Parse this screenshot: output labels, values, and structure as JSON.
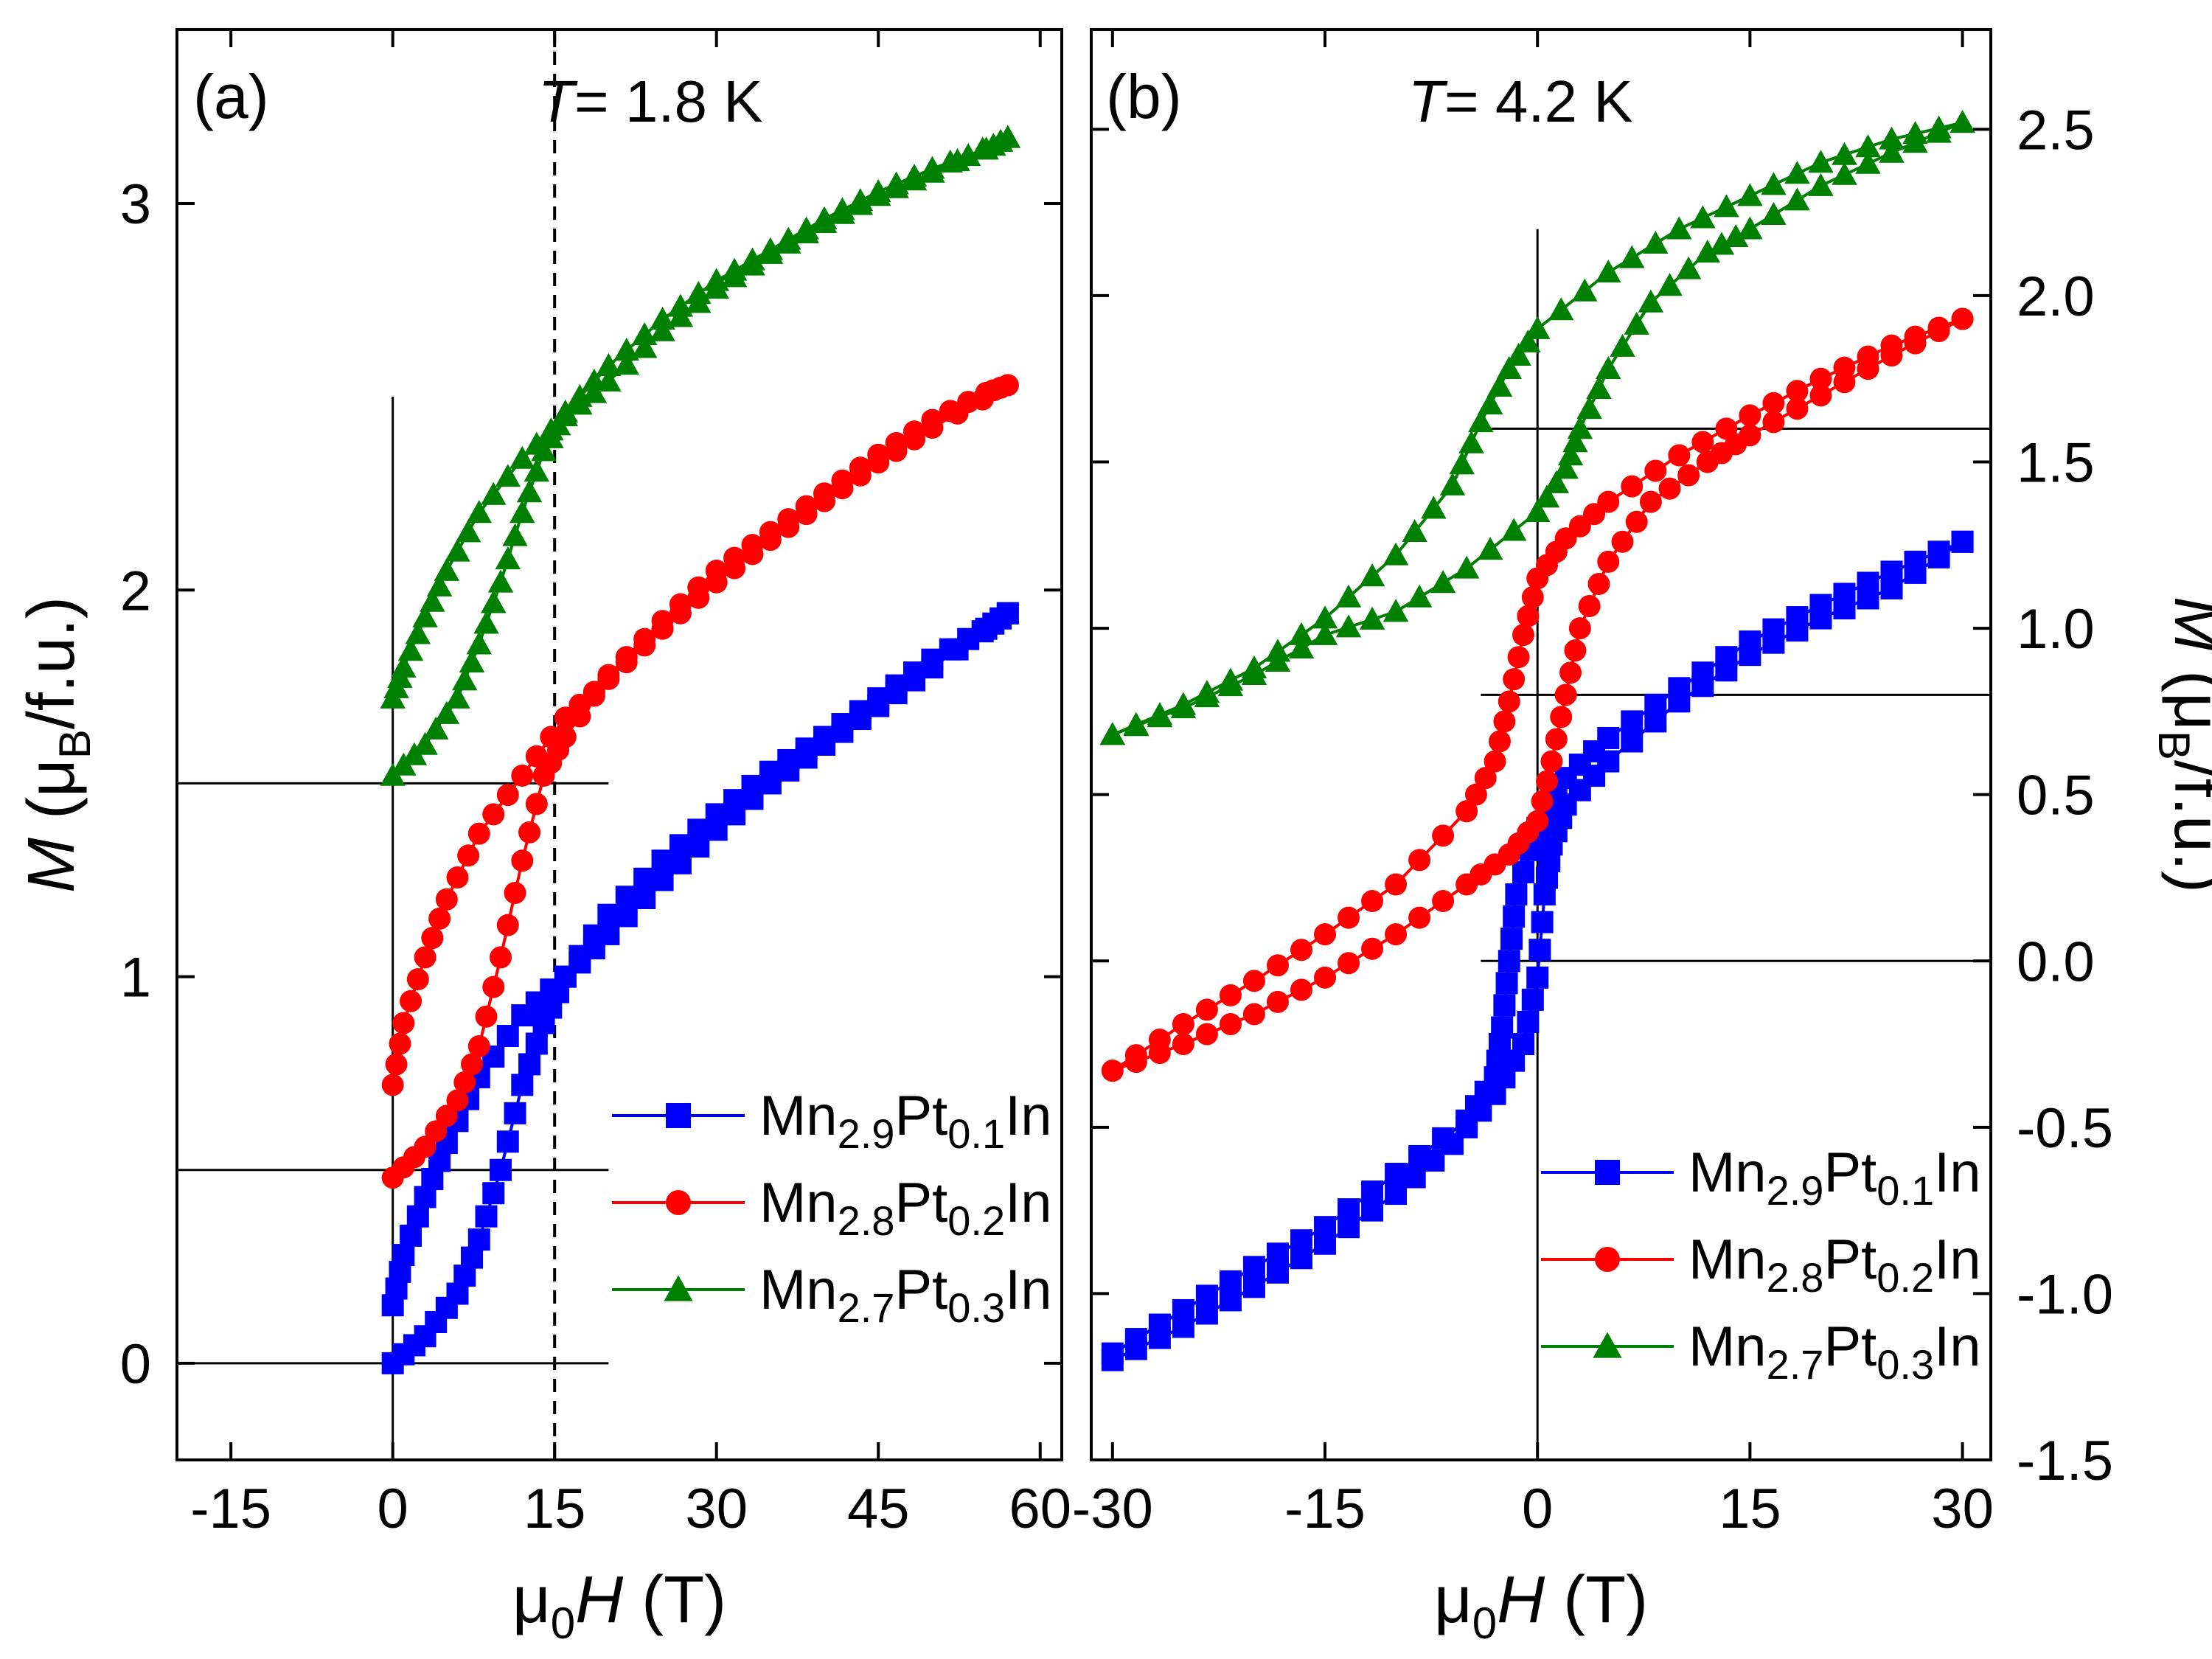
{
  "chart_data": [
    {
      "type": "scatter",
      "panel_label": "(a)",
      "temperature_label": {
        "T": "T",
        "rest": "= 1.8 K"
      },
      "xlabel": {
        "prefix": "μ",
        "sub": "0",
        "italic": "H",
        "suffix": " (T)"
      },
      "ylabel": {
        "italic": "M",
        "open": " (μ",
        "sub": "B",
        "rest": "/f.u.)"
      },
      "xlim": [
        -20,
        62
      ],
      "ylim": [
        -0.25,
        3.45
      ],
      "xticks": [
        -15,
        0,
        15,
        30,
        45,
        60
      ],
      "xtick_labels": [
        "-15",
        "0",
        "15",
        "30",
        "45",
        "60"
      ],
      "yticks": [
        0,
        1,
        2,
        3
      ],
      "ytick_labels": [
        "0",
        "1",
        "2",
        "3"
      ],
      "note": "Curves offset vertically; reference baselines at 0, 0.5 and 1.5; dashed line at 15 T",
      "dashed_vline": 15,
      "baselines": [
        0,
        0.5,
        1.5
      ],
      "series": [
        {
          "name": "Mn2.9Pt0.1In",
          "label": {
            "a": "Mn",
            "s1": "2.9",
            "b": "Pt",
            "s2": "0.1",
            "c": "In"
          },
          "color": "#0000FF",
          "marker": "square",
          "up": [
            [
              0,
              0
            ],
            [
              3,
              0.07
            ],
            [
              6,
              0.18
            ],
            [
              8,
              0.32
            ],
            [
              10,
              0.5
            ],
            [
              12,
              0.72
            ],
            [
              14,
              0.88
            ],
            [
              16,
              1.0
            ],
            [
              20,
              1.16
            ],
            [
              25,
              1.3
            ],
            [
              30,
              1.42
            ],
            [
              35,
              1.53
            ],
            [
              40,
              1.62
            ],
            [
              45,
              1.72
            ],
            [
              50,
              1.82
            ],
            [
              55,
              1.9
            ],
            [
              57,
              1.94
            ]
          ],
          "down": [
            [
              57,
              1.94
            ],
            [
              50,
              1.8
            ],
            [
              45,
              1.7
            ],
            [
              40,
              1.6
            ],
            [
              35,
              1.5
            ],
            [
              30,
              1.38
            ],
            [
              25,
              1.25
            ],
            [
              20,
              1.11
            ],
            [
              16,
              1.0
            ],
            [
              12,
              0.9
            ],
            [
              8,
              0.74
            ],
            [
              5,
              0.57
            ],
            [
              3,
              0.43
            ],
            [
              1,
              0.28
            ],
            [
              0,
              0.15
            ]
          ]
        },
        {
          "name": "Mn2.8Pt0.2In",
          "label": {
            "a": "Mn",
            "s1": "2.8",
            "b": "Pt",
            "s2": "0.2",
            "c": "In"
          },
          "color": "#FF0000",
          "marker": "circle",
          "up": [
            [
              0,
              0.48
            ],
            [
              3,
              0.56
            ],
            [
              6,
              0.68
            ],
            [
              8,
              0.82
            ],
            [
              10,
              1.05
            ],
            [
              12,
              1.3
            ],
            [
              14,
              1.52
            ],
            [
              16,
              1.62
            ],
            [
              20,
              1.78
            ],
            [
              25,
              1.92
            ],
            [
              30,
              2.05
            ],
            [
              35,
              2.15
            ],
            [
              40,
              2.25
            ],
            [
              45,
              2.35
            ],
            [
              50,
              2.44
            ],
            [
              55,
              2.51
            ],
            [
              57,
              2.53
            ]
          ],
          "down": [
            [
              57,
              2.53
            ],
            [
              50,
              2.42
            ],
            [
              45,
              2.33
            ],
            [
              40,
              2.23
            ],
            [
              35,
              2.13
            ],
            [
              30,
              2.02
            ],
            [
              25,
              1.9
            ],
            [
              20,
              1.77
            ],
            [
              16,
              1.67
            ],
            [
              12,
              1.52
            ],
            [
              8,
              1.37
            ],
            [
              5,
              1.2
            ],
            [
              3,
              1.05
            ],
            [
              1,
              0.88
            ],
            [
              0,
              0.72
            ]
          ]
        },
        {
          "name": "Mn2.7Pt0.3In",
          "label": {
            "a": "Mn",
            "s1": "2.7",
            "b": "Pt",
            "s2": "0.3",
            "c": "In"
          },
          "color": "#008000",
          "marker": "triangle",
          "up": [
            [
              0,
              1.52
            ],
            [
              3,
              1.6
            ],
            [
              6,
              1.72
            ],
            [
              8,
              1.86
            ],
            [
              10,
              2.02
            ],
            [
              12,
              2.2
            ],
            [
              14,
              2.36
            ],
            [
              16,
              2.46
            ],
            [
              20,
              2.58
            ],
            [
              25,
              2.7
            ],
            [
              30,
              2.8
            ],
            [
              35,
              2.88
            ],
            [
              40,
              2.96
            ],
            [
              45,
              3.03
            ],
            [
              50,
              3.09
            ],
            [
              55,
              3.14
            ],
            [
              57,
              3.17
            ]
          ],
          "down": [
            [
              57,
              3.17
            ],
            [
              50,
              3.08
            ],
            [
              45,
              3.02
            ],
            [
              40,
              2.95
            ],
            [
              35,
              2.87
            ],
            [
              30,
              2.78
            ],
            [
              25,
              2.67
            ],
            [
              20,
              2.54
            ],
            [
              16,
              2.45
            ],
            [
              12,
              2.34
            ],
            [
              8,
              2.2
            ],
            [
              5,
              2.05
            ],
            [
              3,
              1.93
            ],
            [
              1,
              1.8
            ],
            [
              0,
              1.72
            ]
          ]
        }
      ],
      "legend_position": "bottom-right"
    },
    {
      "type": "scatter",
      "panel_label": "(b)",
      "temperature_label": {
        "T": "T",
        "rest": "= 4.2 K"
      },
      "xlabel": {
        "prefix": "μ",
        "sub": "0",
        "italic": "H",
        "suffix": " (T)"
      },
      "ylabel": {
        "italic": "M",
        "open": " (μ",
        "sub": "B",
        "rest": "/f.u.)"
      },
      "xlim": [
        -31.5,
        32
      ],
      "ylim": [
        -1.5,
        2.8
      ],
      "xticks": [
        -30,
        -15,
        0,
        15,
        30
      ],
      "xtick_labels": [
        "-30",
        "-15",
        "0",
        "15",
        "30"
      ],
      "yticks": [
        -1.5,
        -1.0,
        -0.5,
        0.0,
        0.5,
        1.0,
        1.5,
        2.0,
        2.5
      ],
      "ytick_labels": [
        "-1.5",
        "-1.0",
        "-0.5",
        "0.0",
        "0.5",
        "1.0",
        "1.5",
        "2.0",
        "2.5"
      ],
      "note": "Curves offset vertically; reference baselines at 0.0, 0.8 and 1.6; vertical reference at 0 T",
      "baselines": [
        0.0,
        0.8,
        1.6
      ],
      "series": [
        {
          "name": "Mn2.9Pt0.1In",
          "label": {
            "a": "Mn",
            "s1": "2.9",
            "b": "Pt",
            "s2": "0.1",
            "c": "In"
          },
          "color": "#0000FF",
          "marker": "square",
          "up": [
            [
              -30,
              -1.2
            ],
            [
              -25,
              -1.1
            ],
            [
              -20,
              -0.98
            ],
            [
              -15,
              -0.85
            ],
            [
              -10,
              -0.7
            ],
            [
              -6,
              -0.55
            ],
            [
              -3,
              -0.4
            ],
            [
              -1,
              -0.25
            ],
            [
              0,
              -0.05
            ],
            [
              0.5,
              0.2
            ],
            [
              1,
              0.35
            ],
            [
              2,
              0.47
            ],
            [
              5,
              0.6
            ],
            [
              10,
              0.78
            ],
            [
              15,
              0.92
            ],
            [
              20,
              1.03
            ],
            [
              25,
              1.12
            ],
            [
              30,
              1.26
            ]
          ],
          "down": [
            [
              30,
              1.26
            ],
            [
              25,
              1.17
            ],
            [
              20,
              1.07
            ],
            [
              15,
              0.96
            ],
            [
              10,
              0.82
            ],
            [
              5,
              0.67
            ],
            [
              2,
              0.55
            ],
            [
              0,
              0.4
            ],
            [
              -1.5,
              0.2
            ],
            [
              -2,
              0.0
            ],
            [
              -2.5,
              -0.2
            ],
            [
              -3,
              -0.35
            ],
            [
              -5,
              -0.48
            ],
            [
              -10,
              -0.64
            ],
            [
              -15,
              -0.8
            ],
            [
              -20,
              -0.92
            ],
            [
              -25,
              -1.05
            ],
            [
              -30,
              -1.18
            ]
          ]
        },
        {
          "name": "Mn2.8Pt0.2In",
          "label": {
            "a": "Mn",
            "s1": "2.8",
            "b": "Pt",
            "s2": "0.2",
            "c": "In"
          },
          "color": "#FF0000",
          "marker": "circle",
          "up": [
            [
              -30,
              -0.33
            ],
            [
              -25,
              -0.25
            ],
            [
              -20,
              -0.16
            ],
            [
              -15,
              -0.05
            ],
            [
              -10,
              0.08
            ],
            [
              -5,
              0.23
            ],
            [
              -2,
              0.32
            ],
            [
              0,
              0.42
            ],
            [
              1,
              0.6
            ],
            [
              2,
              0.8
            ],
            [
              3,
              1.0
            ],
            [
              5,
              1.2
            ],
            [
              8,
              1.38
            ],
            [
              12,
              1.5
            ],
            [
              15,
              1.58
            ],
            [
              20,
              1.7
            ],
            [
              25,
              1.82
            ],
            [
              30,
              1.93
            ]
          ],
          "down": [
            [
              30,
              1.93
            ],
            [
              25,
              1.85
            ],
            [
              20,
              1.75
            ],
            [
              15,
              1.64
            ],
            [
              10,
              1.52
            ],
            [
              5,
              1.38
            ],
            [
              2,
              1.27
            ],
            [
              0,
              1.15
            ],
            [
              -1,
              0.98
            ],
            [
              -2,
              0.78
            ],
            [
              -3,
              0.6
            ],
            [
              -5,
              0.45
            ],
            [
              -10,
              0.23
            ],
            [
              -15,
              0.08
            ],
            [
              -20,
              -0.06
            ],
            [
              -25,
              -0.19
            ],
            [
              -30,
              -0.33
            ]
          ]
        },
        {
          "name": "Mn2.7Pt0.3In",
          "label": {
            "a": "Mn",
            "s1": "2.7",
            "b": "Pt",
            "s2": "0.3",
            "c": "In"
          },
          "color": "#008000",
          "marker": "triangle",
          "up": [
            [
              -30,
              0.68
            ],
            [
              -25,
              0.76
            ],
            [
              -20,
              0.86
            ],
            [
              -15,
              0.98
            ],
            [
              -10,
              1.05
            ],
            [
              -5,
              1.18
            ],
            [
              0,
              1.35
            ],
            [
              2,
              1.48
            ],
            [
              3,
              1.6
            ],
            [
              5,
              1.78
            ],
            [
              8,
              1.98
            ],
            [
              12,
              2.13
            ],
            [
              15,
              2.2
            ],
            [
              20,
              2.33
            ],
            [
              25,
              2.43
            ],
            [
              30,
              2.52
            ]
          ],
          "down": [
            [
              30,
              2.52
            ],
            [
              25,
              2.47
            ],
            [
              20,
              2.4
            ],
            [
              15,
              2.3
            ],
            [
              10,
              2.2
            ],
            [
              5,
              2.07
            ],
            [
              0,
              1.9
            ],
            [
              -2,
              1.78
            ],
            [
              -4,
              1.62
            ],
            [
              -6,
              1.43
            ],
            [
              -10,
              1.22
            ],
            [
              -15,
              1.03
            ],
            [
              -20,
              0.88
            ],
            [
              -25,
              0.77
            ],
            [
              -30,
              0.68
            ]
          ]
        }
      ],
      "legend_position": "bottom-right"
    }
  ]
}
